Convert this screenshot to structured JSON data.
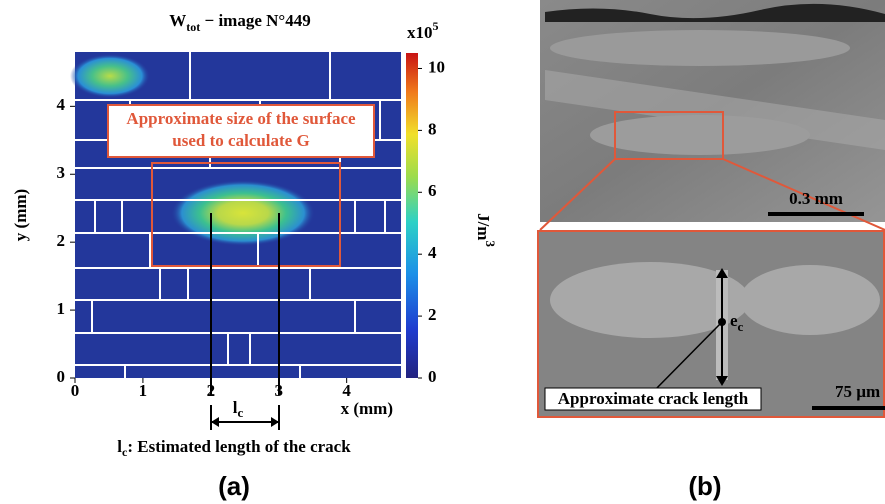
{
  "panel_a": {
    "title": {
      "main": "W",
      "sub": "tot",
      "rest": " − image N°449"
    },
    "colorbar": {
      "multiplier": "x10",
      "exponent": "5",
      "unit": "J/m",
      "unit_exp": "3",
      "ticks": [
        0,
        2,
        4,
        6,
        8,
        10
      ],
      "lim": [
        0,
        10.5
      ]
    },
    "xlabel": "x (mm)",
    "ylabel": "y (mm)",
    "xticks": [
      0,
      1,
      2,
      3,
      4
    ],
    "yticks": [
      0,
      1,
      2,
      3,
      4
    ],
    "xlim": [
      0,
      4.8
    ],
    "ylim": [
      0,
      4.8
    ],
    "surface_note": [
      "Approximate size of the surface",
      "used to calculate G"
    ],
    "lc": {
      "main": "l",
      "sub": "c"
    },
    "caption": {
      "main": "l",
      "sub": "c",
      "rest": ": Estimated length of the crack"
    },
    "label": "(a)"
  },
  "panel_b": {
    "scale_top": "0.3 mm",
    "scale_bottom": "75 µm",
    "ec": {
      "main": "e",
      "sub": "c"
    },
    "crack_note": "Approximate crack length",
    "label": "(b)"
  }
}
